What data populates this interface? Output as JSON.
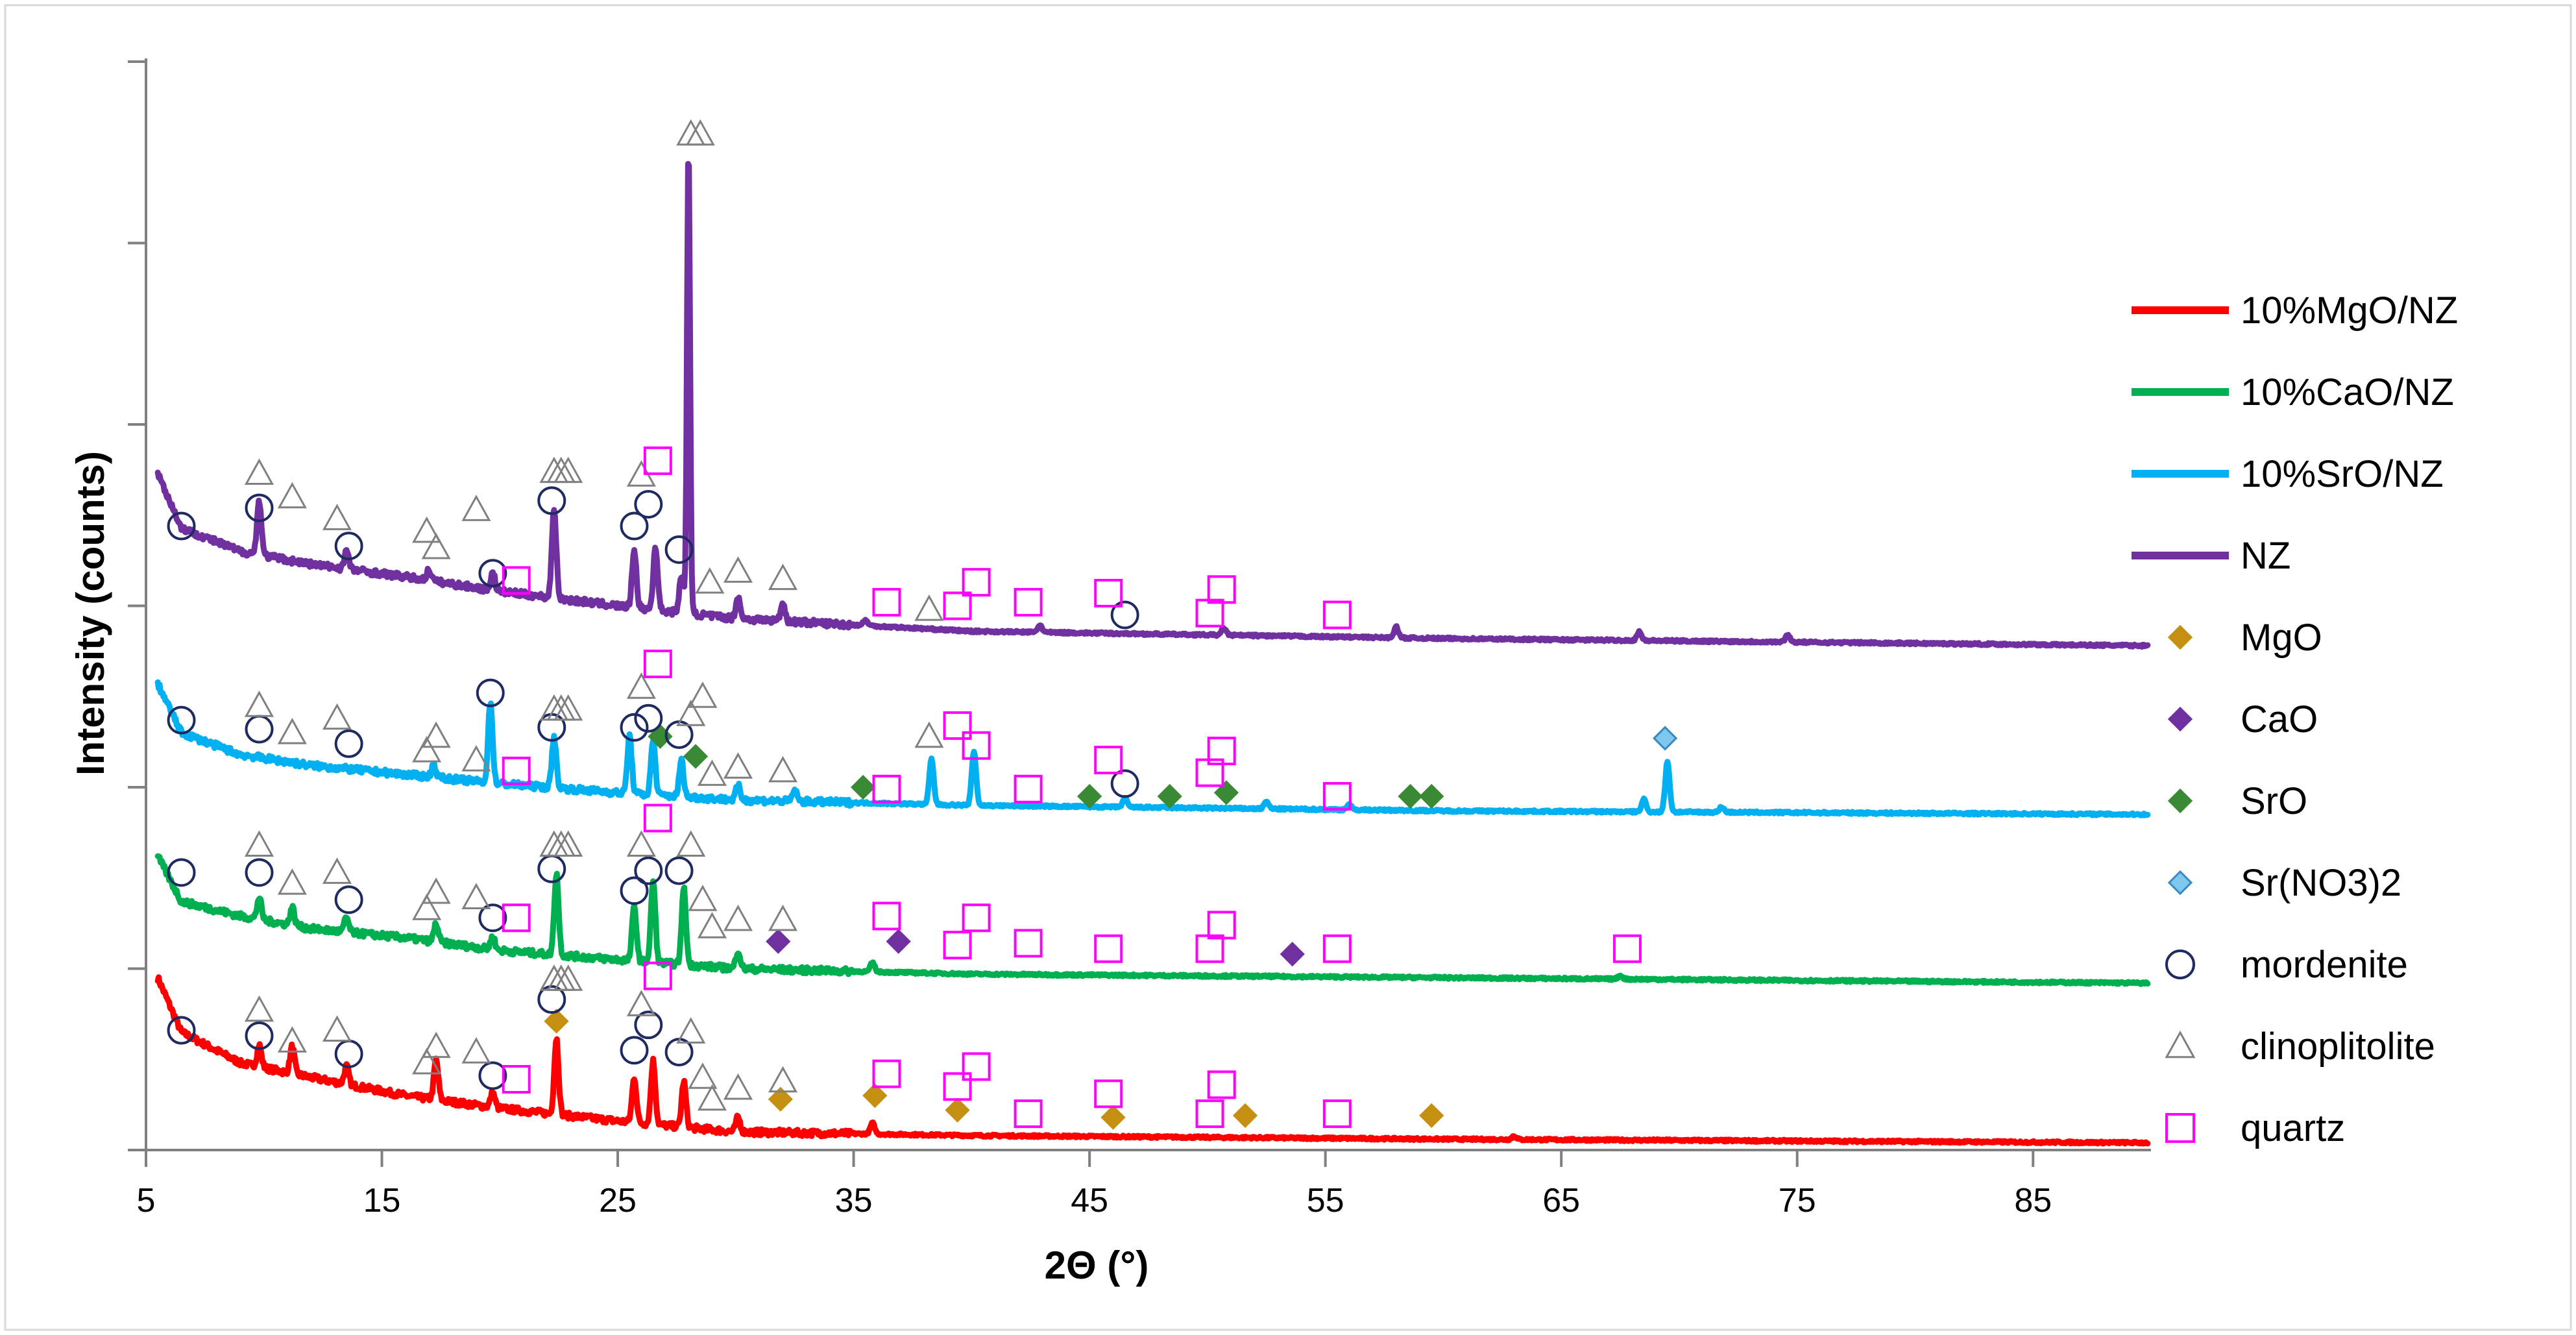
{
  "chart_data": {
    "type": "line",
    "xlabel": "2Θ (°)",
    "ylabel": "Intensity (counts)",
    "xlim": [
      5,
      90
    ],
    "xticks": [
      5,
      15,
      25,
      35,
      45,
      55,
      65,
      75,
      85
    ],
    "ylim": [
      0,
      6
    ],
    "grid": false,
    "legend_position": "right",
    "series": [
      {
        "name": "10%MgO/NZ",
        "color": "#ff0000",
        "baseline": 0.05,
        "offset": 0.0,
        "background": [
          [
            5.5,
            0.95
          ],
          [
            6.5,
            0.65
          ],
          [
            9,
            0.48
          ],
          [
            12,
            0.4
          ],
          [
            16,
            0.3
          ],
          [
            20,
            0.23
          ],
          [
            25,
            0.16
          ],
          [
            30,
            0.1
          ],
          [
            40,
            0.08
          ],
          [
            60,
            0.06
          ],
          [
            90,
            0.04
          ]
        ],
        "peaks": [
          [
            9.8,
            0.12
          ],
          [
            11.2,
            0.15
          ],
          [
            13.5,
            0.1
          ],
          [
            17.3,
            0.22
          ],
          [
            19.7,
            0.08
          ],
          [
            22.4,
            0.42
          ],
          [
            25.7,
            0.25
          ],
          [
            26.5,
            0.35
          ],
          [
            27.8,
            0.25
          ],
          [
            30.1,
            0.08
          ],
          [
            35.8,
            0.06
          ],
          [
            63,
            0.02
          ]
        ]
      },
      {
        "name": "10%CaO/NZ",
        "color": "#00b050",
        "baseline": 0.92,
        "offset": 0.92,
        "background": [
          [
            5.5,
            0.7
          ],
          [
            6.5,
            0.45
          ],
          [
            9,
            0.37
          ],
          [
            12,
            0.3
          ],
          [
            16,
            0.25
          ],
          [
            20,
            0.18
          ],
          [
            25,
            0.13
          ],
          [
            30,
            0.08
          ],
          [
            40,
            0.05
          ],
          [
            60,
            0.03
          ],
          [
            90,
            0.0
          ]
        ],
        "peaks": [
          [
            9.8,
            0.12
          ],
          [
            11.2,
            0.1
          ],
          [
            13.5,
            0.08
          ],
          [
            17.3,
            0.1
          ],
          [
            19.7,
            0.07
          ],
          [
            22.4,
            0.45
          ],
          [
            25.7,
            0.3
          ],
          [
            26.5,
            0.45
          ],
          [
            27.8,
            0.42
          ],
          [
            30.1,
            0.1
          ],
          [
            35.8,
            0.05
          ],
          [
            67.5,
            0.02
          ]
        ]
      },
      {
        "name": "10%SrO/NZ",
        "color": "#00b0f0",
        "baseline": 1.85,
        "offset": 1.85,
        "background": [
          [
            5.5,
            0.72
          ],
          [
            6.5,
            0.45
          ],
          [
            9,
            0.33
          ],
          [
            12,
            0.27
          ],
          [
            16,
            0.22
          ],
          [
            20,
            0.17
          ],
          [
            25,
            0.12
          ],
          [
            30,
            0.08
          ],
          [
            40,
            0.05
          ],
          [
            60,
            0.02
          ],
          [
            90,
            0.0
          ]
        ],
        "peaks": [
          [
            17.2,
            0.07
          ],
          [
            19.6,
            0.45
          ],
          [
            22.3,
            0.28
          ],
          [
            25.5,
            0.32
          ],
          [
            26.5,
            0.3
          ],
          [
            27.7,
            0.2
          ],
          [
            30.1,
            0.08
          ],
          [
            32.5,
            0.06
          ],
          [
            38.3,
            0.25
          ],
          [
            40.1,
            0.3
          ],
          [
            46.5,
            0.05
          ],
          [
            52.5,
            0.04
          ],
          [
            56.0,
            0.03
          ],
          [
            68.5,
            0.07
          ],
          [
            69.5,
            0.28
          ],
          [
            71.8,
            0.03
          ]
        ]
      },
      {
        "name": "NZ",
        "color": "#7030a0",
        "baseline": 2.78,
        "offset": 2.78,
        "background": [
          [
            5.5,
            0.95
          ],
          [
            6.5,
            0.65
          ],
          [
            9,
            0.52
          ],
          [
            12,
            0.45
          ],
          [
            16,
            0.38
          ],
          [
            20,
            0.3
          ],
          [
            25,
            0.22
          ],
          [
            30,
            0.15
          ],
          [
            40,
            0.08
          ],
          [
            60,
            0.04
          ],
          [
            90,
            0.0
          ]
        ],
        "peaks": [
          [
            9.8,
            0.3
          ],
          [
            13.5,
            0.1
          ],
          [
            17.0,
            0.06
          ],
          [
            19.7,
            0.1
          ],
          [
            22.3,
            0.5
          ],
          [
            25.7,
            0.32
          ],
          [
            26.6,
            0.35
          ],
          [
            27.7,
            0.2
          ],
          [
            28.0,
            2.6
          ],
          [
            30.1,
            0.12
          ],
          [
            32.0,
            0.1
          ],
          [
            35.5,
            0.03
          ],
          [
            42.9,
            0.04
          ],
          [
            50.7,
            0.04
          ],
          [
            58.0,
            0.06
          ],
          [
            68.3,
            0.05
          ],
          [
            74.6,
            0.04
          ]
        ]
      }
    ],
    "marker_types": [
      {
        "name": "MgO",
        "shape": "diamond",
        "fill": "#c59012",
        "stroke": "#c59012"
      },
      {
        "name": "CaO",
        "shape": "diamond",
        "fill": "#7030a0",
        "stroke": "#7030a0"
      },
      {
        "name": "SrO",
        "shape": "diamond",
        "fill": "#3a8a35",
        "stroke": "#3a8a35"
      },
      {
        "name": "Sr(NO3)2",
        "shape": "diamond",
        "fill": "#7ec8ee",
        "stroke": "#3a88c0"
      },
      {
        "name": "mordenite",
        "shape": "circle",
        "fill": "none",
        "stroke": "#1f2a60"
      },
      {
        "name": "clinoplitolite",
        "shape": "triangle",
        "fill": "none",
        "stroke": "#808080"
      },
      {
        "name": "quartz",
        "shape": "square",
        "fill": "none",
        "stroke": "#ff00ff"
      }
    ],
    "phase_markers": {
      "MgO": [
        [
          22.4,
          0.71
        ],
        [
          31.9,
          0.28
        ],
        [
          35.9,
          0.3
        ],
        [
          39.4,
          0.22
        ],
        [
          46.0,
          0.18
        ],
        [
          51.6,
          0.19
        ],
        [
          59.5,
          0.19
        ]
      ],
      "CaO": [
        [
          31.8,
          1.15
        ],
        [
          36.9,
          1.15
        ],
        [
          53.6,
          1.08
        ]
      ],
      "SrO": [
        [
          26.8,
          2.28
        ],
        [
          28.3,
          2.17
        ],
        [
          35.4,
          2.0
        ],
        [
          45.0,
          1.95
        ],
        [
          48.4,
          1.95
        ],
        [
          50.8,
          1.97
        ],
        [
          58.6,
          1.95
        ],
        [
          59.5,
          1.95
        ]
      ],
      "Sr(NO3)2": [
        [
          69.4,
          2.27
        ]
      ],
      "mordenite": [
        [
          6.5,
          0.66
        ],
        [
          9.8,
          0.63
        ],
        [
          13.6,
          0.53
        ],
        [
          19.7,
          0.41
        ],
        [
          22.2,
          0.83
        ],
        [
          25.7,
          0.55
        ],
        [
          26.3,
          0.69
        ],
        [
          27.6,
          0.54
        ],
        [
          6.5,
          1.53
        ],
        [
          9.8,
          1.53
        ],
        [
          13.6,
          1.38
        ],
        [
          19.7,
          1.28
        ],
        [
          22.2,
          1.55
        ],
        [
          25.7,
          1.43
        ],
        [
          26.3,
          1.54
        ],
        [
          27.6,
          1.54
        ],
        [
          6.5,
          2.37
        ],
        [
          9.8,
          2.32
        ],
        [
          13.6,
          2.24
        ],
        [
          19.6,
          2.52
        ],
        [
          22.2,
          2.33
        ],
        [
          25.7,
          2.33
        ],
        [
          26.3,
          2.38
        ],
        [
          27.6,
          2.29
        ],
        [
          46.5,
          2.02
        ],
        [
          6.5,
          3.44
        ],
        [
          9.8,
          3.54
        ],
        [
          13.6,
          3.33
        ],
        [
          19.7,
          3.18
        ],
        [
          22.2,
          3.58
        ],
        [
          25.7,
          3.44
        ],
        [
          26.3,
          3.56
        ],
        [
          27.6,
          3.31
        ],
        [
          46.5,
          2.95
        ]
      ],
      "clinoplitolite": [
        [
          9.8,
          0.77
        ],
        [
          11.2,
          0.6
        ],
        [
          13.1,
          0.66
        ],
        [
          16.9,
          0.48
        ],
        [
          17.3,
          0.57
        ],
        [
          19.0,
          0.54
        ],
        [
          22.3,
          0.94
        ],
        [
          22.6,
          0.94
        ],
        [
          22.9,
          0.94
        ],
        [
          26.0,
          0.8
        ],
        [
          28.1,
          0.65
        ],
        [
          28.6,
          0.4
        ],
        [
          29.0,
          0.28
        ],
        [
          30.1,
          0.34
        ],
        [
          32.0,
          0.38
        ],
        [
          9.8,
          1.68
        ],
        [
          11.2,
          1.47
        ],
        [
          13.1,
          1.53
        ],
        [
          16.9,
          1.33
        ],
        [
          17.3,
          1.42
        ],
        [
          19.0,
          1.39
        ],
        [
          22.3,
          1.68
        ],
        [
          22.6,
          1.68
        ],
        [
          22.9,
          1.68
        ],
        [
          26.0,
          1.68
        ],
        [
          28.1,
          1.68
        ],
        [
          28.6,
          1.38
        ],
        [
          29.0,
          1.23
        ],
        [
          30.1,
          1.27
        ],
        [
          32.0,
          1.27
        ],
        [
          9.8,
          2.45
        ],
        [
          11.2,
          2.3
        ],
        [
          13.1,
          2.38
        ],
        [
          16.9,
          2.2
        ],
        [
          17.3,
          2.28
        ],
        [
          19.0,
          2.15
        ],
        [
          22.3,
          2.43
        ],
        [
          22.6,
          2.43
        ],
        [
          22.9,
          2.43
        ],
        [
          26.0,
          2.55
        ],
        [
          28.1,
          2.4
        ],
        [
          28.6,
          2.5
        ],
        [
          29.0,
          2.07
        ],
        [
          30.1,
          2.11
        ],
        [
          32.0,
          2.09
        ],
        [
          38.2,
          2.28
        ],
        [
          9.8,
          3.73
        ],
        [
          11.2,
          3.6
        ],
        [
          13.1,
          3.48
        ],
        [
          16.9,
          3.41
        ],
        [
          17.3,
          3.32
        ],
        [
          19.0,
          3.53
        ],
        [
          22.3,
          3.74
        ],
        [
          22.6,
          3.74
        ],
        [
          22.9,
          3.74
        ],
        [
          26.0,
          3.72
        ],
        [
          28.1,
          5.6
        ],
        [
          28.5,
          5.6
        ],
        [
          28.9,
          3.13
        ],
        [
          30.1,
          3.19
        ],
        [
          32.0,
          3.15
        ],
        [
          38.2,
          2.98
        ]
      ],
      "quartz": [
        [
          20.7,
          0.39
        ],
        [
          26.7,
          0.96
        ],
        [
          36.4,
          0.42
        ],
        [
          39.4,
          0.35
        ],
        [
          40.2,
          0.46
        ],
        [
          42.4,
          0.2
        ],
        [
          45.8,
          0.31
        ],
        [
          50.1,
          0.2
        ],
        [
          50.6,
          0.36
        ],
        [
          55.5,
          0.2
        ],
        [
          20.7,
          1.28
        ],
        [
          26.7,
          1.83
        ],
        [
          36.4,
          1.29
        ],
        [
          39.4,
          1.13
        ],
        [
          40.2,
          1.28
        ],
        [
          42.4,
          1.14
        ],
        [
          45.8,
          1.11
        ],
        [
          50.1,
          1.11
        ],
        [
          50.6,
          1.24
        ],
        [
          55.5,
          1.11
        ],
        [
          67.8,
          1.11
        ],
        [
          20.7,
          2.09
        ],
        [
          26.7,
          2.68
        ],
        [
          36.4,
          1.99
        ],
        [
          39.4,
          2.34
        ],
        [
          40.2,
          2.23
        ],
        [
          42.4,
          1.99
        ],
        [
          45.8,
          2.15
        ],
        [
          50.1,
          2.08
        ],
        [
          50.6,
          2.2
        ],
        [
          55.5,
          1.95
        ],
        [
          20.7,
          3.14
        ],
        [
          26.7,
          3.8
        ],
        [
          36.4,
          3.02
        ],
        [
          39.4,
          3.0
        ],
        [
          40.2,
          3.13
        ],
        [
          42.4,
          3.02
        ],
        [
          45.8,
          3.07
        ],
        [
          50.1,
          2.96
        ],
        [
          50.6,
          3.09
        ],
        [
          55.5,
          2.95
        ]
      ]
    }
  }
}
